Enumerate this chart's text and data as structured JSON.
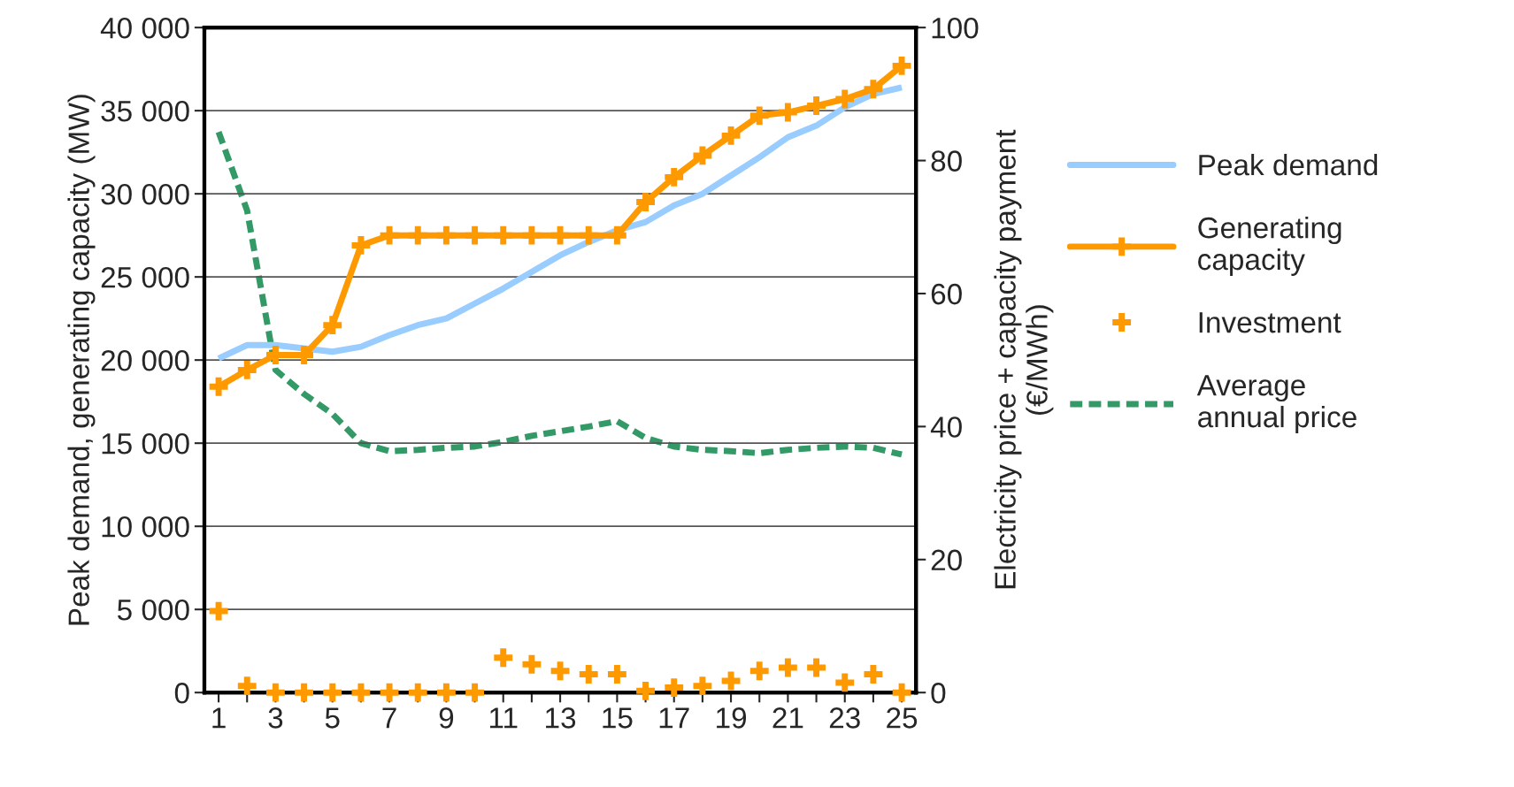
{
  "chart_data": {
    "type": "line",
    "x": [
      1,
      2,
      3,
      4,
      5,
      6,
      7,
      8,
      9,
      10,
      11,
      12,
      13,
      14,
      15,
      16,
      17,
      18,
      19,
      20,
      21,
      22,
      23,
      24,
      25
    ],
    "ylabel": "Peak demand, generating capacity (MW)",
    "y2label": "Electricity price + capacity payment\n(€/MWh)",
    "xlim": [
      0.5,
      25.5
    ],
    "xticks": [
      1,
      {
        "value": 2,
        "label": null
      },
      3,
      {
        "value": 4,
        "label": null
      },
      5,
      {
        "value": 6,
        "label": null
      },
      7,
      {
        "value": 8,
        "label": null
      },
      9,
      {
        "value": 10,
        "label": null
      },
      11,
      {
        "value": 12,
        "label": null
      },
      13,
      {
        "value": 14,
        "label": null
      },
      15,
      {
        "value": 16,
        "label": null
      },
      17,
      {
        "value": 18,
        "label": null
      },
      19,
      {
        "value": 20,
        "label": null
      },
      21,
      {
        "value": 22,
        "label": null
      },
      23,
      {
        "value": 24,
        "label": null
      },
      25
    ],
    "ylim": [
      0,
      40000
    ],
    "yticks": [
      0,
      {
        "value": 5000,
        "label": "5 000"
      },
      {
        "value": 10000,
        "label": "10 000"
      },
      {
        "value": 15000,
        "label": "15 000"
      },
      {
        "value": 20000,
        "label": "20 000"
      },
      {
        "value": 25000,
        "label": "25 000"
      },
      {
        "value": 30000,
        "label": "30 000"
      },
      {
        "value": 35000,
        "label": "35 000"
      },
      {
        "value": 40000,
        "label": "40 000"
      }
    ],
    "y2lim": [
      0,
      100
    ],
    "y2ticks": [
      0,
      20,
      40,
      60,
      80,
      100
    ],
    "grid": "y",
    "legend": "right",
    "series": [
      {
        "name": "Peak demand",
        "color": "#99ccff",
        "marker": "none",
        "line_style": "solid",
        "values": [
          20100,
          20900,
          20900,
          20700,
          20500,
          20800,
          21500,
          22100,
          22500,
          23400,
          24300,
          25300,
          26300,
          27100,
          27800,
          28300,
          29300,
          30000,
          31100,
          32200,
          33400,
          34100,
          35200,
          36000,
          36400
        ]
      },
      {
        "name": "Generating capacity",
        "color": "#ff9900",
        "marker": "cross",
        "line_style": "solid",
        "values": [
          18400,
          19400,
          20300,
          20300,
          22100,
          26900,
          27500,
          27500,
          27500,
          27500,
          27500,
          27500,
          27500,
          27500,
          27500,
          29500,
          31000,
          32300,
          33500,
          34700,
          34900,
          35300,
          35700,
          36300,
          37700
        ]
      },
      {
        "name": "Investment",
        "type": "scatter",
        "color": "#ff9900",
        "marker": "cross",
        "values": [
          4900,
          400,
          0,
          0,
          0,
          0,
          0,
          0,
          0,
          0,
          2100,
          1700,
          1300,
          1100,
          1100,
          100,
          300,
          400,
          700,
          1300,
          1500,
          1500,
          600,
          1100,
          0
        ]
      },
      {
        "name": "Average annual price",
        "color": "#339966",
        "marker": "none",
        "line_style": "dashed",
        "axis": "y2",
        "values": [
          84.3,
          72.5,
          48.5,
          44.9,
          41.9,
          37.5,
          36.3,
          36.5,
          36.8,
          37,
          37.7,
          38.6,
          39.3,
          40,
          40.8,
          38.3,
          37,
          36.5,
          36.3,
          36,
          36.5,
          36.8,
          37,
          36.8,
          35.8
        ]
      }
    ]
  }
}
